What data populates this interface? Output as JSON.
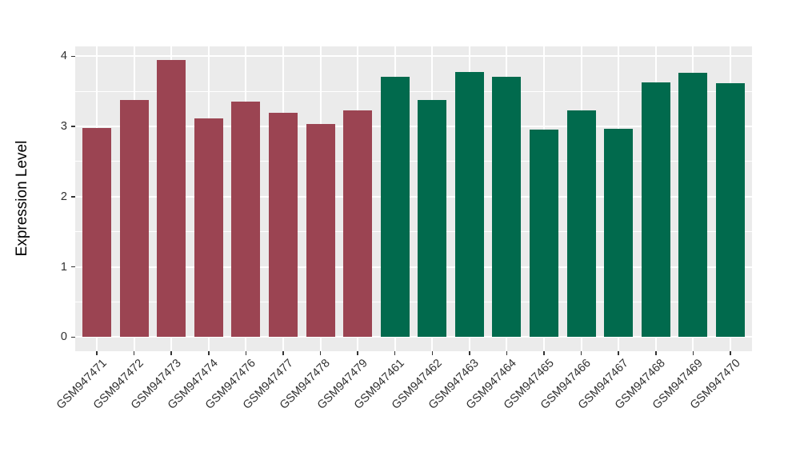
{
  "chart_data": {
    "type": "bar",
    "title": "",
    "xlabel": "",
    "ylabel": "Expression Level",
    "ylim": [
      -0.2,
      4.14
    ],
    "yticks": [
      0,
      1,
      2,
      3,
      4
    ],
    "minor_yticks": [
      0.5,
      1.5,
      2.5,
      3.5
    ],
    "grid": true,
    "legend_position": "none",
    "categories": [
      "GSM947471",
      "GSM947472",
      "GSM947473",
      "GSM947474",
      "GSM947476",
      "GSM947477",
      "GSM947478",
      "GSM947479",
      "GSM947461",
      "GSM947462",
      "GSM947463",
      "GSM947464",
      "GSM947465",
      "GSM947466",
      "GSM947467",
      "GSM947468",
      "GSM947469",
      "GSM947470"
    ],
    "values": [
      2.98,
      3.38,
      3.95,
      3.11,
      3.35,
      3.19,
      3.03,
      3.23,
      3.71,
      3.38,
      3.78,
      3.71,
      2.95,
      3.23,
      2.97,
      3.63,
      3.76,
      3.62
    ],
    "bar_colors": [
      "#9B4452",
      "#9B4452",
      "#9B4452",
      "#9B4452",
      "#9B4452",
      "#9B4452",
      "#9B4452",
      "#9B4452",
      "#016A4D",
      "#016A4D",
      "#016A4D",
      "#016A4D",
      "#016A4D",
      "#016A4D",
      "#016A4D",
      "#016A4D",
      "#016A4D",
      "#016A4D"
    ]
  },
  "colors": {
    "page_bg": "#FFFFFF",
    "panel_bg": "#EBEBEB",
    "grid": "#FFFFFF",
    "bar_red": "#9B4452",
    "bar_green": "#016A4D",
    "axis_text": "#303030",
    "axis_title": "#000000"
  }
}
